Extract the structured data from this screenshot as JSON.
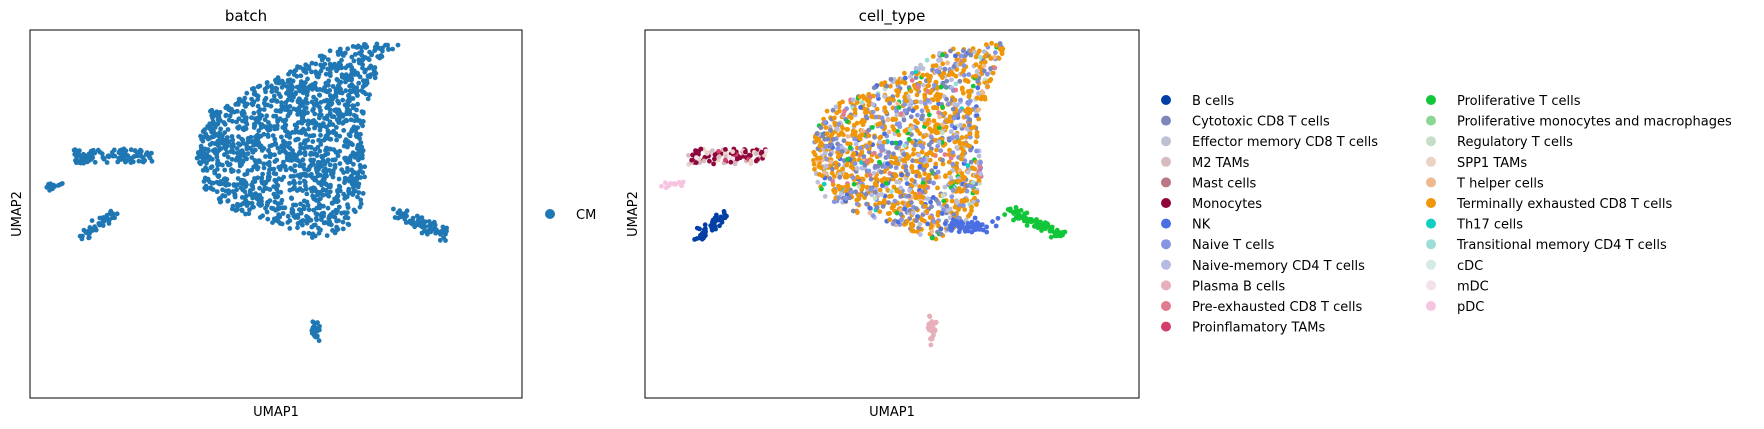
{
  "chart_data": [
    {
      "type": "scatter",
      "title": "batch",
      "xlabel": "UMAP1",
      "ylabel": "UMAP2",
      "legend_position": "right",
      "legend": [
        {
          "name": "CM",
          "color": "#1f77b4"
        }
      ],
      "clusters": [
        {
          "name": "main",
          "series": "CM",
          "shape": "wedge",
          "n": 1500
        },
        {
          "name": "left-band",
          "series": "CM",
          "shape": "band",
          "n": 110
        },
        {
          "name": "far-left",
          "series": "CM",
          "shape": "line",
          "n": 12
        },
        {
          "name": "left-diagonal",
          "series": "CM",
          "shape": "line",
          "n": 45
        },
        {
          "name": "right-diagonal",
          "series": "CM",
          "shape": "line",
          "n": 75
        },
        {
          "name": "bottom",
          "series": "CM",
          "shape": "blob",
          "n": 30
        }
      ]
    },
    {
      "type": "scatter",
      "title": "cell_type",
      "xlabel": "UMAP1",
      "ylabel": "UMAP2",
      "legend_position": "right",
      "legend": [
        {
          "name": "B cells",
          "color": "#023fa5"
        },
        {
          "name": "Cytotoxic CD8 T cells",
          "color": "#7d87b9"
        },
        {
          "name": "Effector memory CD8 T cells",
          "color": "#bec1d4"
        },
        {
          "name": "M2 TAMs",
          "color": "#d6bcc0"
        },
        {
          "name": "Mast cells",
          "color": "#bb7784"
        },
        {
          "name": "Monocytes",
          "color": "#8e063b"
        },
        {
          "name": "NK",
          "color": "#4a6fe3"
        },
        {
          "name": "Naive T cells",
          "color": "#8595e1"
        },
        {
          "name": "Naive-memory CD4 T cells",
          "color": "#b5bbe3"
        },
        {
          "name": "Plasma B cells",
          "color": "#e6afb9"
        },
        {
          "name": "Pre-exhausted CD8 T cells",
          "color": "#e07b91"
        },
        {
          "name": "Proinflamatory TAMs",
          "color": "#d33f6a"
        },
        {
          "name": "Proliferative T cells",
          "color": "#11c638"
        },
        {
          "name": "Proliferative monocytes and macrophages",
          "color": "#8dd593"
        },
        {
          "name": "Regulatory T cells",
          "color": "#c6dec7"
        },
        {
          "name": "SPP1 TAMs",
          "color": "#ead3c6"
        },
        {
          "name": "T helper cells",
          "color": "#f0b98d"
        },
        {
          "name": "Terminally exhausted CD8 T cells",
          "color": "#ef9708"
        },
        {
          "name": "Th17 cells",
          "color": "#0fcfc0"
        },
        {
          "name": "Transitional memory CD4 T cells",
          "color": "#9cded6"
        },
        {
          "name": "cDC",
          "color": "#d5eae7"
        },
        {
          "name": "mDC",
          "color": "#f3e1eb"
        },
        {
          "name": "pDC",
          "color": "#f6c4e1"
        }
      ],
      "clusters": [
        {
          "name": "main",
          "shape": "wedge",
          "n": 1500,
          "mix": {
            "Terminally exhausted CD8 T cells": 0.46,
            "Cytotoxic CD8 T cells": 0.15,
            "Naive T cells": 0.1,
            "Naive-memory CD4 T cells": 0.07,
            "Effector memory CD8 T cells": 0.06,
            "NK": 0.05,
            "Proliferative T cells": 0.03,
            "T helper cells": 0.03,
            "Pre-exhausted CD8 T cells": 0.02,
            "Th17 cells": 0.01,
            "Regulatory T cells": 0.01,
            "Transitional memory CD4 T cells": 0.01
          }
        },
        {
          "name": "left-band",
          "shape": "band",
          "n": 110,
          "mix": {
            "Monocytes": 0.55,
            "M2 TAMs": 0.15,
            "Proinflamatory TAMs": 0.12,
            "SPP1 TAMs": 0.1,
            "mDC": 0.08
          }
        },
        {
          "name": "far-left",
          "shape": "line",
          "n": 12,
          "mix": {
            "pDC": 1.0
          }
        },
        {
          "name": "left-diagonal",
          "shape": "line",
          "n": 45,
          "mix": {
            "B cells": 1.0
          }
        },
        {
          "name": "right-diagonal",
          "shape": "line",
          "n": 75,
          "mix": {
            "Proliferative T cells": 1.0
          }
        },
        {
          "name": "bottom",
          "shape": "blob",
          "n": 30,
          "mix": {
            "Plasma B cells": 1.0
          }
        },
        {
          "name": "bottom-nk",
          "shape": "blob",
          "n": 60,
          "mix": {
            "NK": 1.0
          }
        }
      ]
    }
  ]
}
